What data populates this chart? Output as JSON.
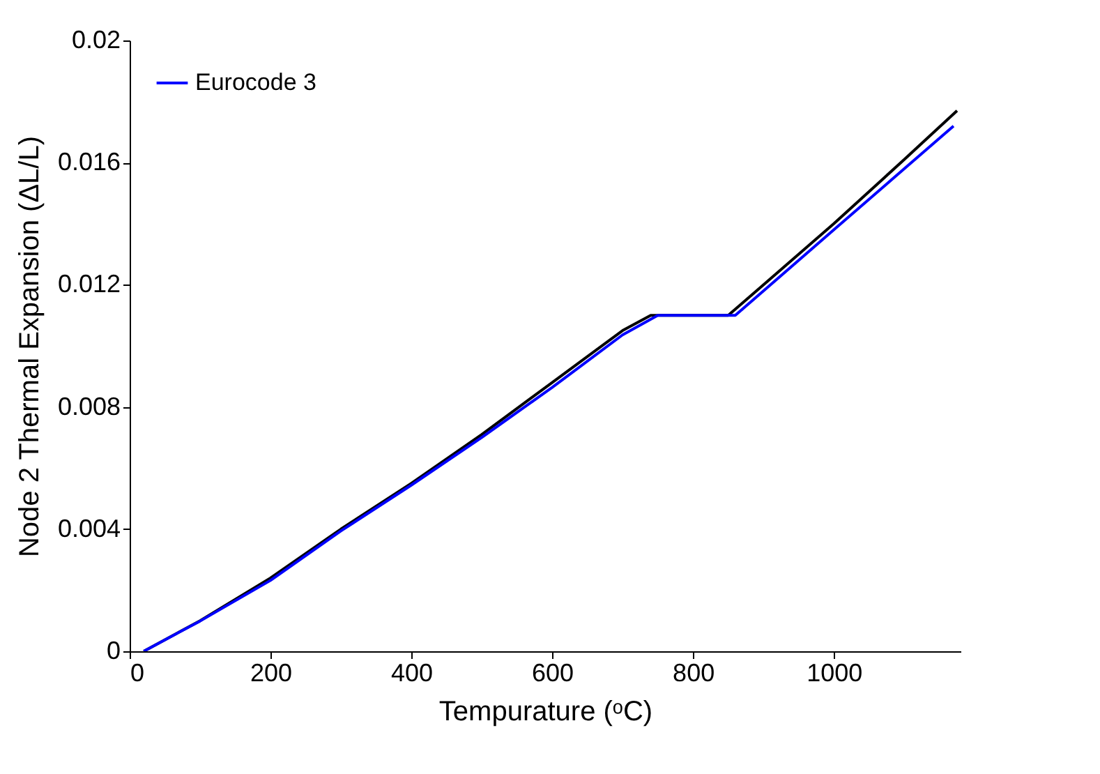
{
  "chart_data": {
    "type": "line",
    "xlabel": "Tempurature (ᵒC)",
    "ylabel": "Node 2 Thermal Expansion (ΔL/L)",
    "xlim": [
      0,
      1180
    ],
    "xticks": [
      0,
      200,
      400,
      600,
      800,
      1000
    ],
    "ylim": [
      0,
      0.02
    ],
    "yticks": [
      0,
      0.004,
      0.008,
      0.012,
      0.016,
      0.02
    ],
    "grid": false,
    "legend": "top left",
    "marker": "none",
    "line_style": "solid",
    "series": [
      {
        "color": "#000000",
        "x": [
          20,
          100,
          200,
          300,
          400,
          500,
          600,
          700,
          740,
          850,
          900,
          1000,
          1100,
          1175
        ],
        "values": [
          0,
          0.001,
          0.0024,
          0.004,
          0.0055,
          0.0071,
          0.0088,
          0.0105,
          0.011,
          0.011,
          0.012,
          0.014,
          0.0161,
          0.0177
        ]
      },
      {
        "name": "Eurocode 3",
        "color": "#0000ff",
        "x": [
          20,
          100,
          200,
          300,
          400,
          500,
          600,
          700,
          750,
          860,
          900,
          1000,
          1100,
          1170
        ],
        "values": [
          0,
          0.00099,
          0.00232,
          0.00394,
          0.00544,
          0.007,
          0.00864,
          0.01036,
          0.011,
          0.011,
          0.0118,
          0.0138,
          0.0158,
          0.0172
        ]
      }
    ]
  }
}
